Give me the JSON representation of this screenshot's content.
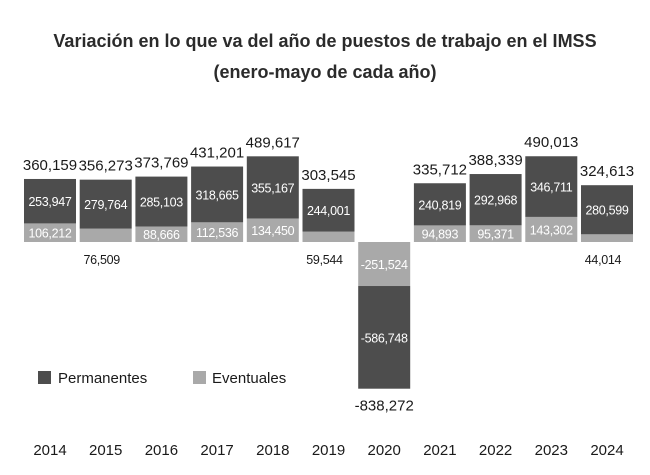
{
  "chart_data": {
    "type": "bar",
    "stacked": true,
    "title": "Variación en lo que va del año de puestos de trabajo en el IMSS",
    "subtitle": "(enero-mayo de cada año)",
    "categories": [
      "2014",
      "2015",
      "2016",
      "2017",
      "2018",
      "2019",
      "2020",
      "2021",
      "2022",
      "2023",
      "2024"
    ],
    "series": [
      {
        "name": "Permanentes",
        "color": "#4d4d4d",
        "values": [
          253947,
          279764,
          285103,
          318665,
          355167,
          244001,
          -586748,
          240819,
          292968,
          346711,
          280599
        ],
        "labels": [
          "253,947",
          "279,764",
          "285,103",
          "318,665",
          "355,167",
          "244,001",
          "-586,748",
          "240,819",
          "292,968",
          "346,711",
          "280,599"
        ]
      },
      {
        "name": "Eventuales",
        "color": "#a9a9a9",
        "values": [
          106212,
          76509,
          88666,
          112536,
          134450,
          59544,
          -251524,
          94893,
          95371,
          143302,
          44014
        ],
        "labels": [
          "106,212",
          "76,509",
          "88,666",
          "112,536",
          "134,450",
          "59,544",
          "-251,524",
          "94,893",
          "95,371",
          "143,302",
          "44,014"
        ]
      }
    ],
    "totals": [
      360159,
      356273,
      373769,
      431201,
      489617,
      303545,
      -838272,
      335712,
      388339,
      490013,
      324613
    ],
    "total_labels": [
      "360,159",
      "356,273",
      "373,769",
      "431,201",
      "489,617",
      "303,545",
      "-838,272",
      "335,712",
      "388,339",
      "490,013",
      "324,613"
    ],
    "ylim": [
      -850000,
      500000
    ],
    "legend_position": "lower-left",
    "xlabel": "",
    "ylabel": ""
  }
}
